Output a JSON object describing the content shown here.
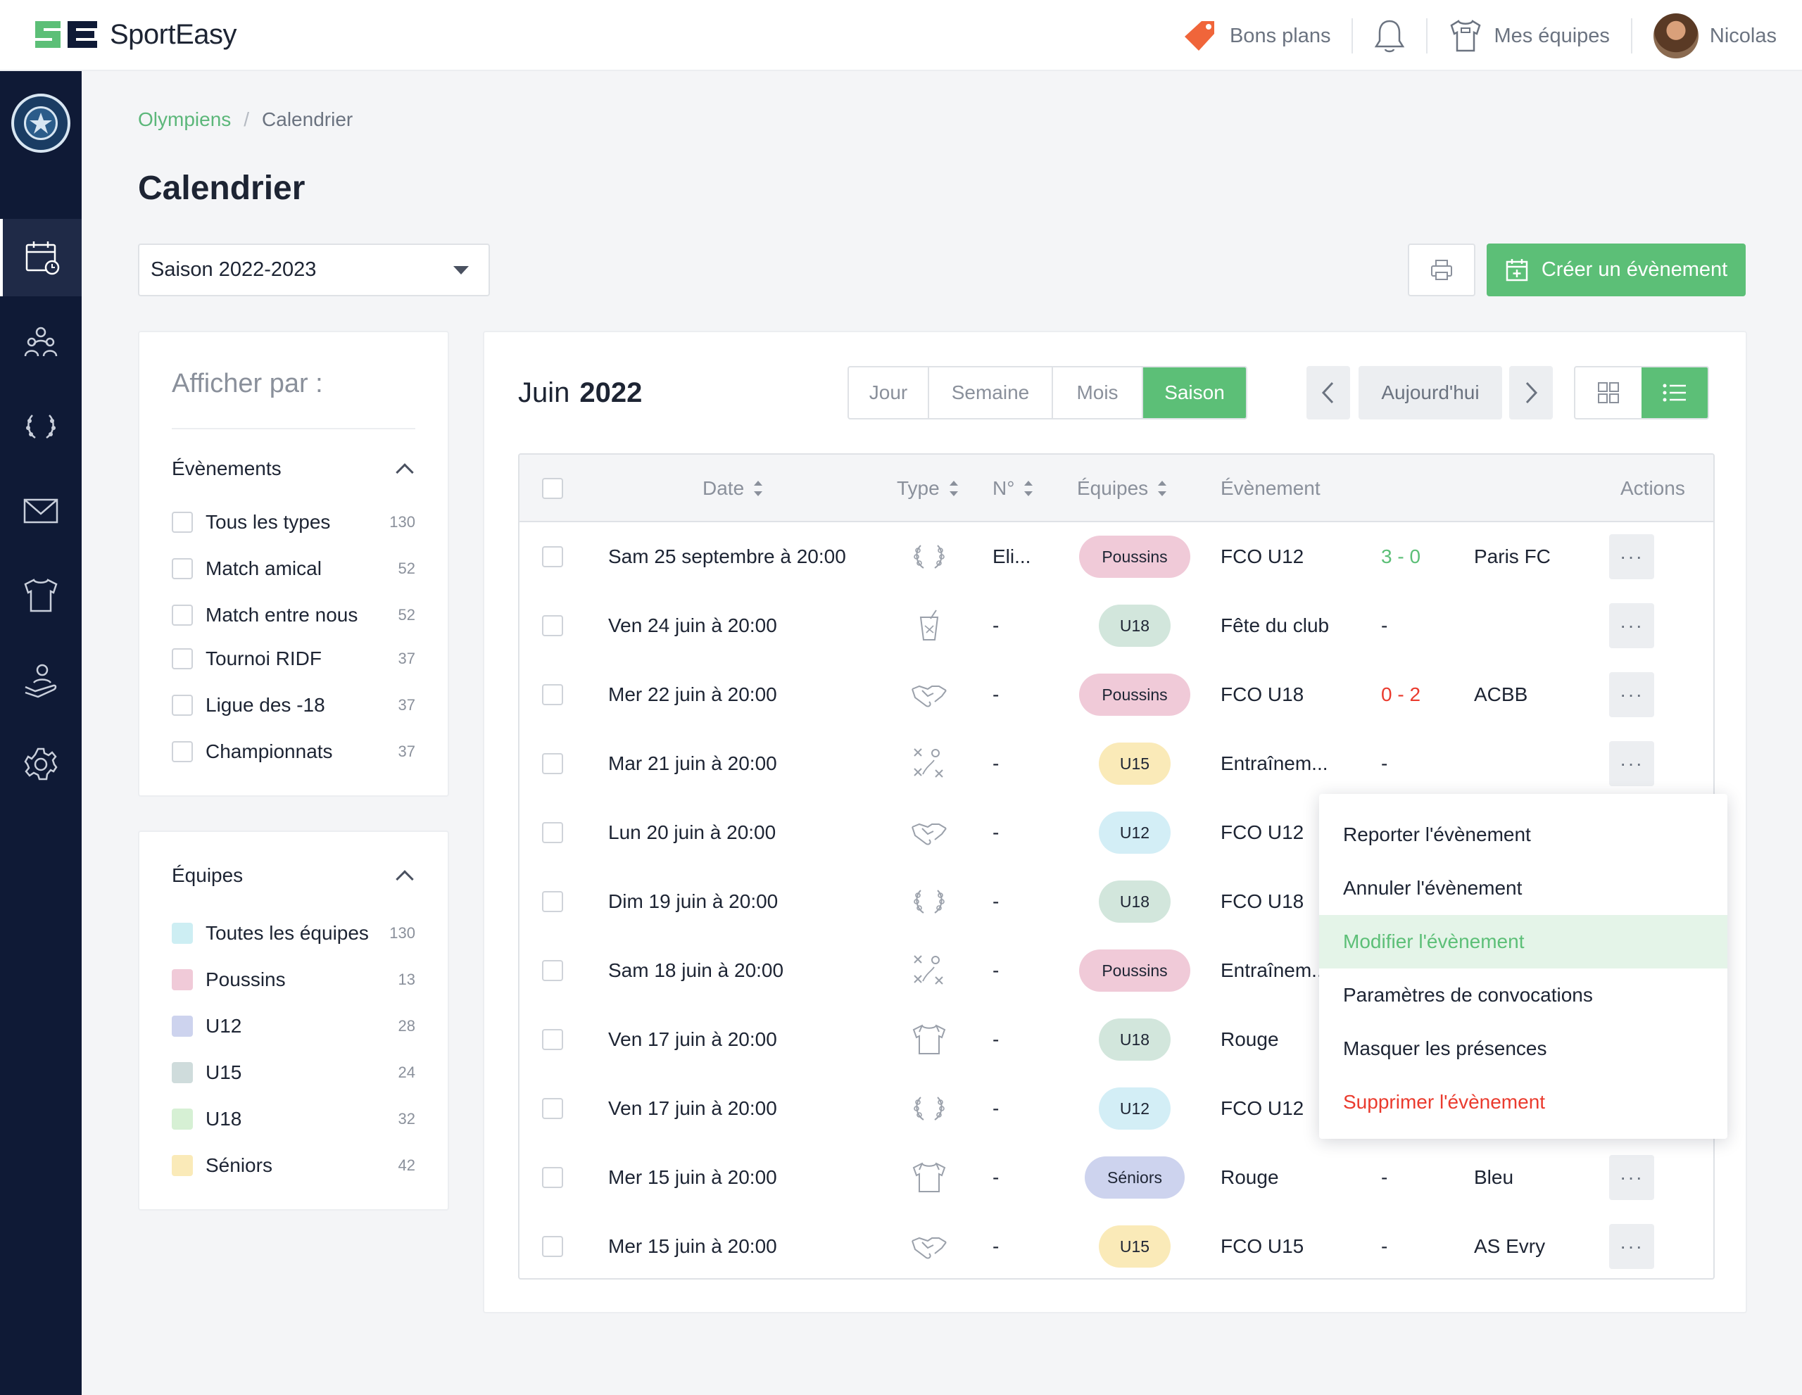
{
  "brand": {
    "name": "SportEasy"
  },
  "topnav": {
    "deals": "Bons plans",
    "teams": "Mes équipes",
    "user": "Nicolas"
  },
  "breadcrumb": {
    "club": "Olympiens",
    "current": "Calendrier"
  },
  "page": {
    "title": "Calendrier"
  },
  "season": {
    "selected": "Saison 2022-2023"
  },
  "actions": {
    "create": "Créer un évènement"
  },
  "filters": {
    "title": "Afficher par :",
    "events_title": "Évènements",
    "events": [
      {
        "label": "Tous les types",
        "count": "130"
      },
      {
        "label": "Match amical",
        "count": "52"
      },
      {
        "label": "Match entre nous",
        "count": "52"
      },
      {
        "label": "Tournoi RIDF",
        "count": "37"
      },
      {
        "label": "Ligue des -18",
        "count": "37"
      },
      {
        "label": "Championnats",
        "count": "37"
      }
    ],
    "teams_title": "Équipes",
    "teams": [
      {
        "label": "Toutes les équipes",
        "count": "130",
        "color": "#cdeef3"
      },
      {
        "label": "Poussins",
        "count": "13",
        "color": "#f0cad8"
      },
      {
        "label": "U12",
        "count": "28",
        "color": "#cdd3ee"
      },
      {
        "label": "U15",
        "count": "24",
        "color": "#cfdcdc"
      },
      {
        "label": "U18",
        "count": "32",
        "color": "#d6f0d4"
      },
      {
        "label": "Séniors",
        "count": "42",
        "color": "#faeab8"
      }
    ]
  },
  "calendar": {
    "month": "Juin",
    "year": "2022",
    "views": [
      "Jour",
      "Semaine",
      "Mois",
      "Saison"
    ],
    "active_view": "Saison",
    "today": "Aujourd'hui",
    "columns": {
      "date": "Date",
      "type": "Type",
      "num": "N°",
      "teams": "Équipes",
      "event": "Évènement",
      "actions": "Actions"
    },
    "rows": [
      {
        "date": "Sam 25 septembre à 20:00",
        "icon": "trophy-icon",
        "num": "Eli...",
        "team": "Poussins",
        "team_color": "#f0cad8",
        "event": "FCO U12",
        "score": "3 - 0",
        "score_kind": "win",
        "opponent": "Paris FC"
      },
      {
        "date": "Ven 24 juin à 20:00",
        "icon": "drink-icon",
        "num": "-",
        "team": "U18",
        "team_color": "#d2e6dc",
        "event": "Fête du club",
        "score": "-",
        "score_kind": "none",
        "opponent": ""
      },
      {
        "date": "Mer 22 juin à 20:00",
        "icon": "handshake-icon",
        "num": "-",
        "team": "Poussins",
        "team_color": "#f0cad8",
        "event": "FCO U18",
        "score": "0 - 2",
        "score_kind": "loss",
        "opponent": "ACBB"
      },
      {
        "date": "Mar 21 juin à 20:00",
        "icon": "tactics-icon",
        "num": "-",
        "team": "U15",
        "team_color": "#faeab8",
        "event": "Entraînem...",
        "score": "-",
        "score_kind": "none",
        "opponent": ""
      },
      {
        "date": "Lun 20 juin à 20:00",
        "icon": "handshake-icon",
        "num": "-",
        "team": "U12",
        "team_color": "#d3eef6",
        "event": "FCO U12",
        "score": "",
        "score_kind": "none",
        "opponent": ""
      },
      {
        "date": "Dim 19 juin à 20:00",
        "icon": "trophy-icon",
        "num": "-",
        "team": "U18",
        "team_color": "#d2e6dc",
        "event": "FCO U18",
        "score": "",
        "score_kind": "none",
        "opponent": ""
      },
      {
        "date": "Sam 18 juin à 20:00",
        "icon": "tactics-icon",
        "num": "-",
        "team": "Poussins",
        "team_color": "#f0cad8",
        "event": "Entraînem...",
        "score": "",
        "score_kind": "none",
        "opponent": ""
      },
      {
        "date": "Ven 17 juin à 20:00",
        "icon": "jersey-icon",
        "num": "-",
        "team": "U18",
        "team_color": "#d2e6dc",
        "event": "Rouge",
        "score": "",
        "score_kind": "none",
        "opponent": ""
      },
      {
        "date": "Ven 17 juin à 20:00",
        "icon": "trophy-icon",
        "num": "-",
        "team": "U12",
        "team_color": "#d3eef6",
        "event": "FCO U12",
        "score": "",
        "score_kind": "none",
        "opponent": ""
      },
      {
        "date": "Mer 15 juin à 20:00",
        "icon": "jersey-icon",
        "num": "-",
        "team": "Séniors",
        "team_color": "#cdd3ee",
        "event": "Rouge",
        "score": "-",
        "score_kind": "none",
        "opponent": "Bleu"
      },
      {
        "date": "Mer 15 juin à 20:00",
        "icon": "handshake-icon",
        "num": "-",
        "team": "U15",
        "team_color": "#faeab8",
        "event": "FCO U15",
        "score": "-",
        "score_kind": "none",
        "opponent": "AS Evry"
      }
    ],
    "more_label": "···"
  },
  "context_menu": {
    "items": [
      {
        "label": "Reporter l'évènement",
        "kind": "normal"
      },
      {
        "label": "Annuler l'évènement",
        "kind": "normal"
      },
      {
        "label": "Modifier l'évènement",
        "kind": "highlighted"
      },
      {
        "label": "Paramètres de convocations",
        "kind": "normal"
      },
      {
        "label": "Masquer les présences",
        "kind": "normal"
      },
      {
        "label": "Supprimer l'évènement",
        "kind": "danger"
      }
    ]
  },
  "colors": {
    "accent": "#5cbf77",
    "sidebar": "#0f1a36",
    "danger": "#ea3b2e"
  }
}
